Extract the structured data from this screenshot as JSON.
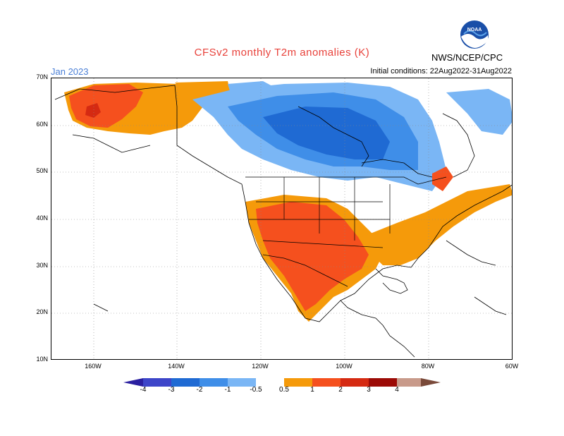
{
  "header": {
    "title": "CFSv2 monthly T2m anomalies (K)",
    "month": "Jan 2023",
    "initial_conditions": "Initial conditions: 22Aug2022-31Aug2022",
    "agency": "NWS/NCEP/CPC",
    "logo_text": "NOAA"
  },
  "map": {
    "lat_labels": [
      "70N",
      "60N",
      "50N",
      "40N",
      "30N",
      "20N",
      "10N"
    ],
    "lon_labels": [
      "160W",
      "140W",
      "120W",
      "100W",
      "80W",
      "60W"
    ],
    "grid": "dotted"
  },
  "colorbar": {
    "labels": [
      "-4",
      "-3",
      "-2",
      "-1",
      "-0.5",
      "0.5",
      "1",
      "2",
      "3",
      "4"
    ],
    "colors": [
      "#2a1fa0",
      "#3d45c9",
      "#1f6ad3",
      "#3f8ee8",
      "#7ab6f5",
      "#ffffff",
      "#f59a0a",
      "#f5501e",
      "#d52a12",
      "#9c0a06",
      "#c89a8a",
      "#7a4a3a"
    ]
  },
  "anomaly_regions": [
    {
      "name": "Alaska",
      "level": "1 to 2"
    },
    {
      "name": "Yukon / western Canada",
      "level": "0.5 to 1"
    },
    {
      "name": "Central Canada",
      "level": "-2 to -1"
    },
    {
      "name": "Southwest US and Mexico",
      "level": "1 to 2"
    },
    {
      "name": "Southeast US",
      "level": "0.5 to 1"
    }
  ]
}
